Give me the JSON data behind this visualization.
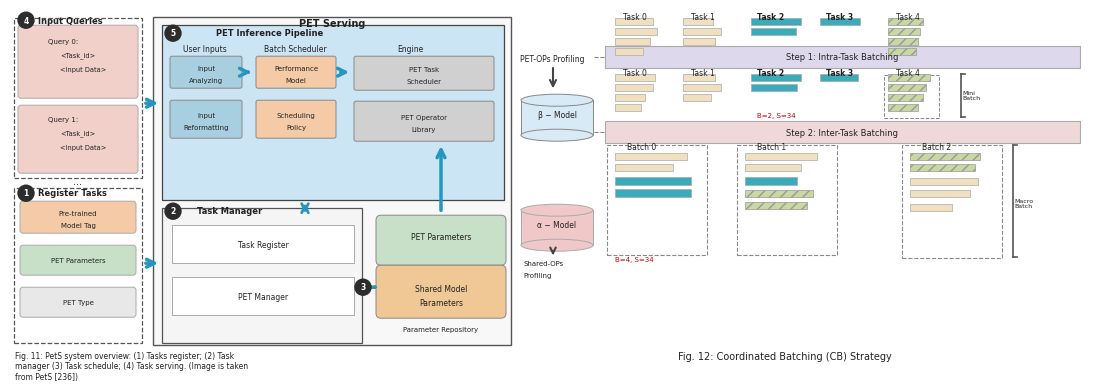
{
  "fig_width": 10.8,
  "fig_height": 3.64,
  "bg_color": "#ffffff",
  "caption1": "Fig. 11: PetS system overview: (1) Tasks register; (2) Task\nmanager (3) Task schedule; (4) Task serving. (Image is taken\nfrom PetS [236])",
  "caption2": "Fig. 12: Coordinated Batching (CB) Strategy",
  "colors": {
    "light_blue_pipeline": "#cce5f5",
    "blue_box": "#a8cfe0",
    "orange_box": "#f5cba7",
    "gray_box": "#d0d0d0",
    "green_cyl": "#c8dfc8",
    "orange_cyl": "#f0c896",
    "pet_serving_bg": "#f5f5f5",
    "task_mgr_bg": "#f5f5f5",
    "query_box": "#f0d0c8",
    "pretrained_box": "#f5cba7",
    "pet_param_box": "#c8dfc8",
    "pet_type_box": "#e8e8e8",
    "beige_bar": "#f0e0c0",
    "teal_bar": "#3aabba",
    "green_bar": "#c8d8a0",
    "step1_bg": "#ddd8ec",
    "step2_bg": "#f0d8d8",
    "beta_cyl": "#c8dce8",
    "alpha_cyl": "#e8c8c8",
    "arrow_teal": "#2596be",
    "red_text": "#cc0000",
    "dark": "#222222",
    "mid_gray": "#888888",
    "dashed": "#666666"
  }
}
